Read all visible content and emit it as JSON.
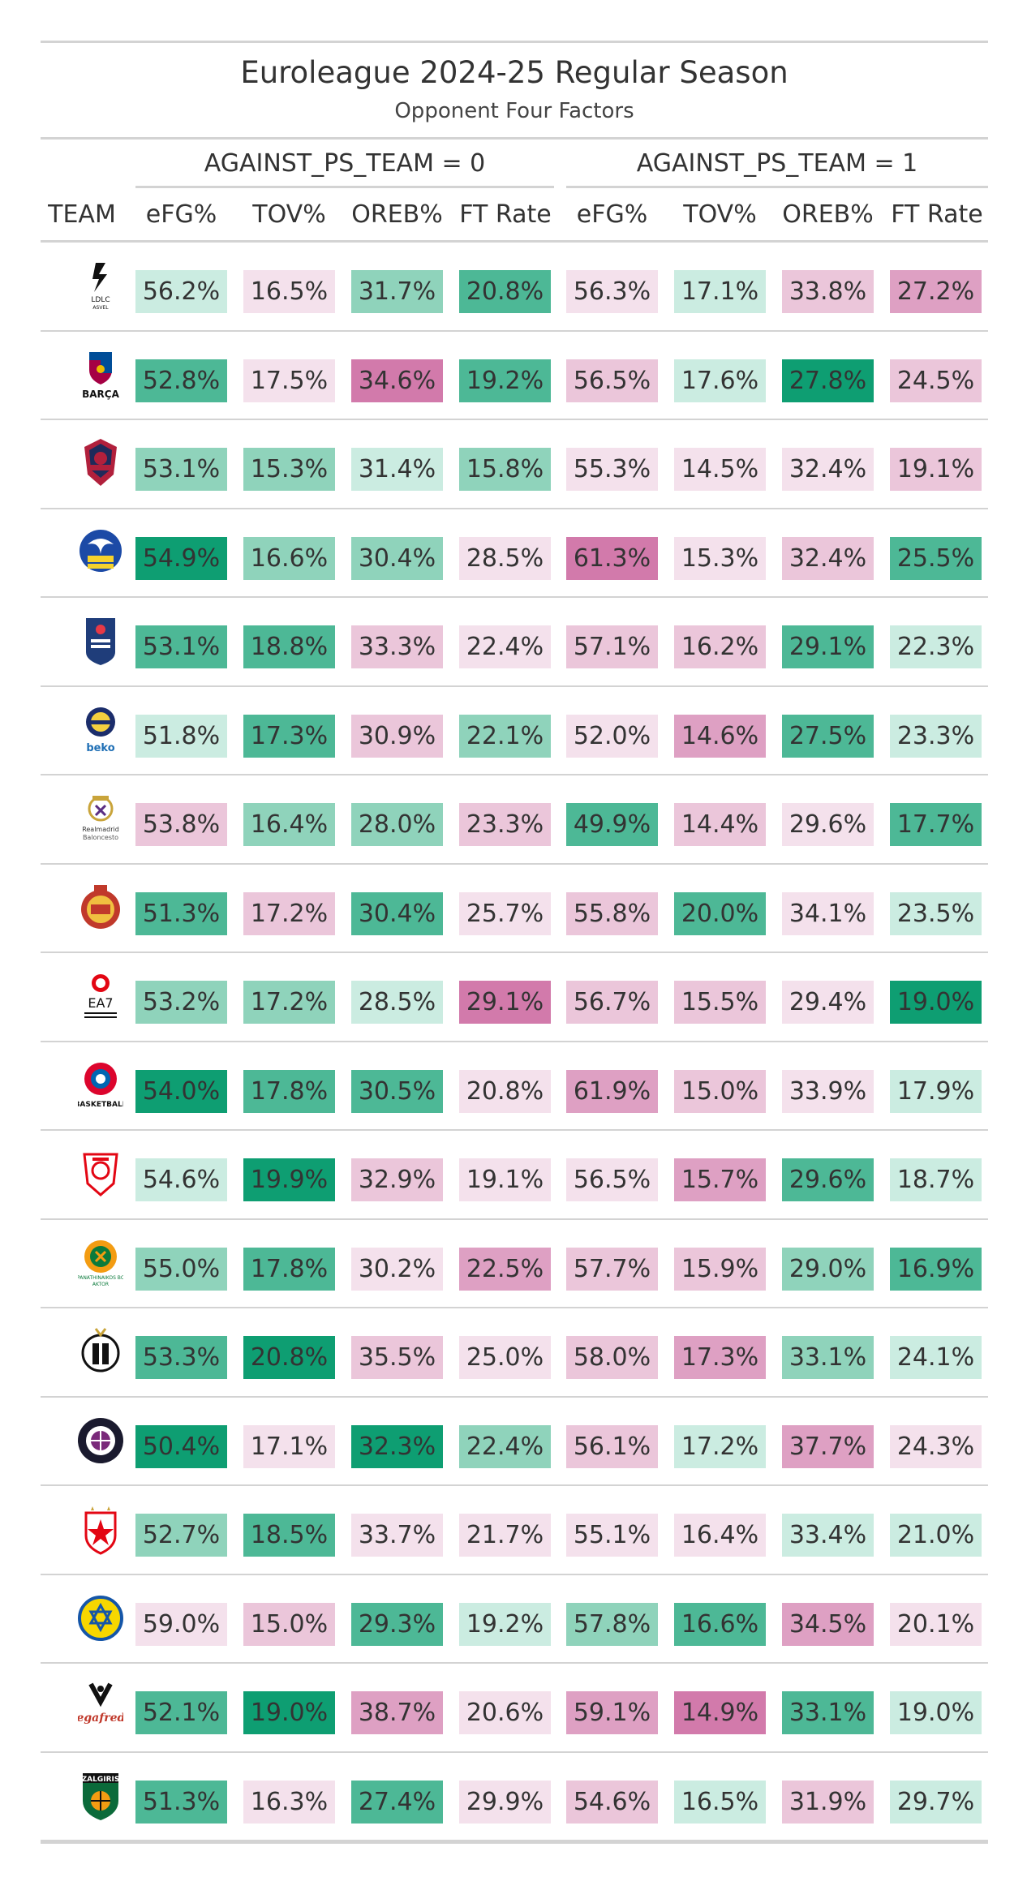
{
  "title": "Euroleague 2024-25 Regular Season",
  "subtitle": "Opponent Four Factors",
  "spanners": [
    "AGAINST_PS_TEAM = 0",
    "AGAINST_PS_TEAM = 1"
  ],
  "columns": [
    "TEAM",
    "eFG%",
    "TOV%",
    "OREB%",
    "FT Rate",
    "eFG%",
    "TOV%",
    "OREB%",
    "FT Rate"
  ],
  "colors": {
    "green_strong": "#0e9e72",
    "green_mid": "#4db896",
    "green_light": "#8fd3bb",
    "green_pale": "#cbece1",
    "pink_strong": "#d27aab",
    "pink_mid": "#dea0c3",
    "pink_light": "#ebc6da",
    "pink_pale": "#f4e1ec"
  },
  "rows": [
    {
      "team": "ASVEL",
      "logo": "asvel-logo",
      "values": [
        "56.2%",
        "16.5%",
        "31.7%",
        "20.8%",
        "56.3%",
        "17.1%",
        "33.8%",
        "27.2%"
      ],
      "shades": [
        "gp",
        "pp",
        "gl",
        "gm",
        "pp",
        "gp",
        "pl",
        "pm"
      ]
    },
    {
      "team": "Barça",
      "logo": "barca-logo",
      "values": [
        "52.8%",
        "17.5%",
        "34.6%",
        "19.2%",
        "56.5%",
        "17.6%",
        "27.8%",
        "24.5%"
      ],
      "shades": [
        "gm",
        "pp",
        "ps",
        "gm",
        "pl",
        "gp",
        "gs",
        "pl"
      ]
    },
    {
      "team": "Baskonia",
      "logo": "baskonia-logo",
      "values": [
        "53.1%",
        "15.3%",
        "31.4%",
        "15.8%",
        "55.3%",
        "14.5%",
        "32.4%",
        "19.1%"
      ],
      "shades": [
        "gl",
        "gl",
        "gp",
        "gl",
        "pp",
        "pp",
        "pp",
        "pl"
      ]
    },
    {
      "team": "Alba Berlin",
      "logo": "alba-logo",
      "values": [
        "54.9%",
        "16.6%",
        "30.4%",
        "28.5%",
        "61.3%",
        "15.3%",
        "32.4%",
        "25.5%"
      ],
      "shades": [
        "gs",
        "gl",
        "gl",
        "pp",
        "ps",
        "pp",
        "pl",
        "gm"
      ]
    },
    {
      "team": "Anadolu Efes",
      "logo": "efes-logo",
      "values": [
        "53.1%",
        "18.8%",
        "33.3%",
        "22.4%",
        "57.1%",
        "16.2%",
        "29.1%",
        "22.3%"
      ],
      "shades": [
        "gm",
        "gm",
        "pl",
        "pp",
        "pl",
        "pl",
        "gm",
        "gp"
      ]
    },
    {
      "team": "Fenerbahçe Beko",
      "logo": "fenerbahce-logo",
      "values": [
        "51.8%",
        "17.3%",
        "30.9%",
        "22.1%",
        "52.0%",
        "14.6%",
        "27.5%",
        "23.3%"
      ],
      "shades": [
        "gp",
        "gm",
        "pl",
        "gl",
        "pp",
        "pm",
        "gm",
        "gp"
      ]
    },
    {
      "team": "Real Madrid",
      "logo": "realmadrid-logo",
      "values": [
        "53.8%",
        "16.4%",
        "28.0%",
        "23.3%",
        "49.9%",
        "14.4%",
        "29.6%",
        "17.7%"
      ],
      "shades": [
        "pl",
        "gl",
        "gl",
        "pl",
        "gm",
        "pl",
        "pp",
        "gm"
      ]
    },
    {
      "team": "AS Monaco",
      "logo": "monaco-logo",
      "values": [
        "51.3%",
        "17.2%",
        "30.4%",
        "25.7%",
        "55.8%",
        "20.0%",
        "34.1%",
        "23.5%"
      ],
      "shades": [
        "gm",
        "pl",
        "gm",
        "pp",
        "pl",
        "gm",
        "pp",
        "gp"
      ]
    },
    {
      "team": "Olimpia Milano",
      "logo": "milano-logo",
      "values": [
        "53.2%",
        "17.2%",
        "28.5%",
        "29.1%",
        "56.7%",
        "15.5%",
        "29.4%",
        "19.0%"
      ],
      "shades": [
        "gl",
        "gl",
        "gp",
        "ps",
        "pl",
        "pl",
        "pp",
        "gs"
      ]
    },
    {
      "team": "Bayern Munich",
      "logo": "bayern-logo",
      "values": [
        "54.0%",
        "17.8%",
        "30.5%",
        "20.8%",
        "61.9%",
        "15.0%",
        "33.9%",
        "17.9%"
      ],
      "shades": [
        "gs",
        "gm",
        "gm",
        "pp",
        "pm",
        "pl",
        "pp",
        "gp"
      ]
    },
    {
      "team": "Olympiacos",
      "logo": "olympiacos-logo",
      "values": [
        "54.6%",
        "19.9%",
        "32.9%",
        "19.1%",
        "56.5%",
        "15.7%",
        "29.6%",
        "18.7%"
      ],
      "shades": [
        "gp",
        "gs",
        "pl",
        "pp",
        "pp",
        "pm",
        "gm",
        "gp"
      ]
    },
    {
      "team": "Panathinaikos",
      "logo": "panathinaikos-logo",
      "values": [
        "55.0%",
        "17.8%",
        "30.2%",
        "22.5%",
        "57.7%",
        "15.9%",
        "29.0%",
        "16.9%"
      ],
      "shades": [
        "gl",
        "gm",
        "pp",
        "pm",
        "pl",
        "pl",
        "gl",
        "gm"
      ]
    },
    {
      "team": "Partizan",
      "logo": "partizan-logo",
      "values": [
        "53.3%",
        "20.8%",
        "35.5%",
        "25.0%",
        "58.0%",
        "17.3%",
        "33.1%",
        "24.1%"
      ],
      "shades": [
        "gm",
        "gs",
        "pl",
        "pp",
        "pl",
        "pm",
        "gl",
        "gp"
      ]
    },
    {
      "team": "Paris Basketball",
      "logo": "paris-logo",
      "values": [
        "50.4%",
        "17.1%",
        "32.3%",
        "22.4%",
        "56.1%",
        "17.2%",
        "37.7%",
        "24.3%"
      ],
      "shades": [
        "gs",
        "pp",
        "gs",
        "gl",
        "pl",
        "gp",
        "pm",
        "pp"
      ]
    },
    {
      "team": "Crvena Zvezda",
      "logo": "zvezda-logo",
      "values": [
        "52.7%",
        "18.5%",
        "33.7%",
        "21.7%",
        "55.1%",
        "16.4%",
        "33.4%",
        "21.0%"
      ],
      "shades": [
        "gl",
        "gm",
        "pp",
        "pp",
        "pp",
        "pp",
        "gp",
        "gp"
      ]
    },
    {
      "team": "Maccabi Tel Aviv",
      "logo": "maccabi-logo",
      "values": [
        "59.0%",
        "15.0%",
        "29.3%",
        "19.2%",
        "57.8%",
        "16.6%",
        "34.5%",
        "20.1%"
      ],
      "shades": [
        "pp",
        "pl",
        "gm",
        "gp",
        "gl",
        "gm",
        "pm",
        "pp"
      ]
    },
    {
      "team": "Virtus Bologna",
      "logo": "virtus-logo",
      "values": [
        "52.1%",
        "19.0%",
        "38.7%",
        "20.6%",
        "59.1%",
        "14.9%",
        "33.1%",
        "19.0%"
      ],
      "shades": [
        "gm",
        "gs",
        "pm",
        "pp",
        "pm",
        "ps",
        "gm",
        "gp"
      ]
    },
    {
      "team": "Žalgiris",
      "logo": "zalgiris-logo",
      "values": [
        "51.3%",
        "16.3%",
        "27.4%",
        "29.9%",
        "54.6%",
        "16.5%",
        "31.9%",
        "29.7%"
      ],
      "shades": [
        "gm",
        "pp",
        "gm",
        "pp",
        "pl",
        "gp",
        "pl",
        "gp"
      ]
    }
  ]
}
